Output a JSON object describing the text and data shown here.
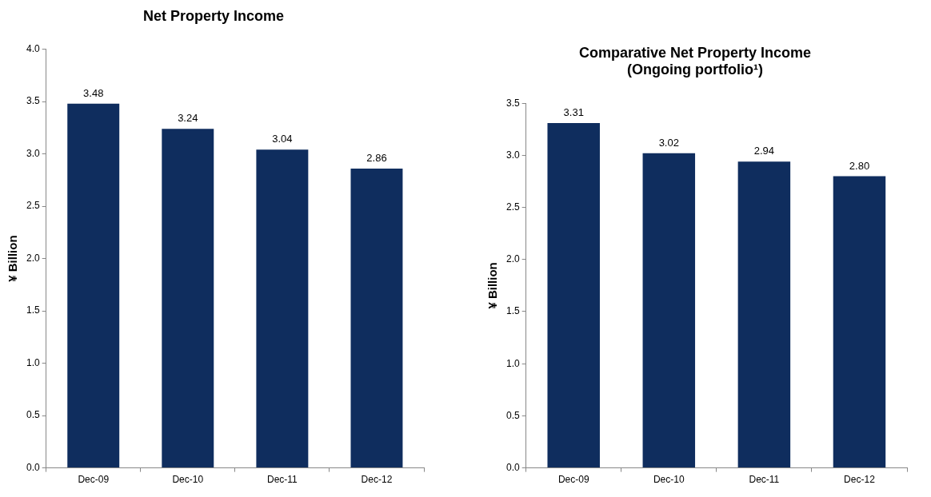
{
  "chart_data": [
    {
      "type": "bar",
      "title": "Net Property Income",
      "ylabel": "¥ Billion",
      "categories": [
        "Dec-09",
        "Dec-10",
        "Dec-11",
        "Dec-12"
      ],
      "values": [
        3.48,
        3.24,
        3.04,
        2.86
      ],
      "color": "#0f2d5e",
      "ylim": [
        0,
        4
      ],
      "yticks": [
        {
          "value": 0,
          "label": "0.0"
        },
        {
          "value": 0.5,
          "label": "0.5"
        },
        {
          "value": 1,
          "label": "1.0"
        },
        {
          "value": 1.5,
          "label": "1.5"
        },
        {
          "value": 2,
          "label": "2.0"
        },
        {
          "value": 2.5,
          "label": "2.5"
        },
        {
          "value": 3,
          "label": "3.0"
        },
        {
          "value": 3.5,
          "label": "3.5"
        },
        {
          "value": 4,
          "label": "4.0"
        }
      ],
      "grid": false,
      "legend": false,
      "data_labels": true
    },
    {
      "type": "bar",
      "title": "Comparative Net Property Income",
      "subtitle": "(Ongoing portfolio¹)",
      "ylabel": "¥ Billion",
      "categories": [
        "Dec-09",
        "Dec-10",
        "Dec-11",
        "Dec-12"
      ],
      "values": [
        3.31,
        3.02,
        2.94,
        2.8
      ],
      "value_labels": [
        "3.31",
        "3.02",
        "2.94",
        "2.80"
      ],
      "color": "#0f2d5e",
      "ylim": [
        0,
        3.5
      ],
      "yticks": [
        {
          "value": 0,
          "label": "0.0"
        },
        {
          "value": 0.5,
          "label": "0.5"
        },
        {
          "value": 1,
          "label": "1.0"
        },
        {
          "value": 1.5,
          "label": "1.5"
        },
        {
          "value": 2,
          "label": "2.0"
        },
        {
          "value": 2.5,
          "label": "2.5"
        },
        {
          "value": 3,
          "label": "3.0"
        },
        {
          "value": 3.5,
          "label": "3.5"
        }
      ],
      "grid": false,
      "legend": false
    }
  ]
}
